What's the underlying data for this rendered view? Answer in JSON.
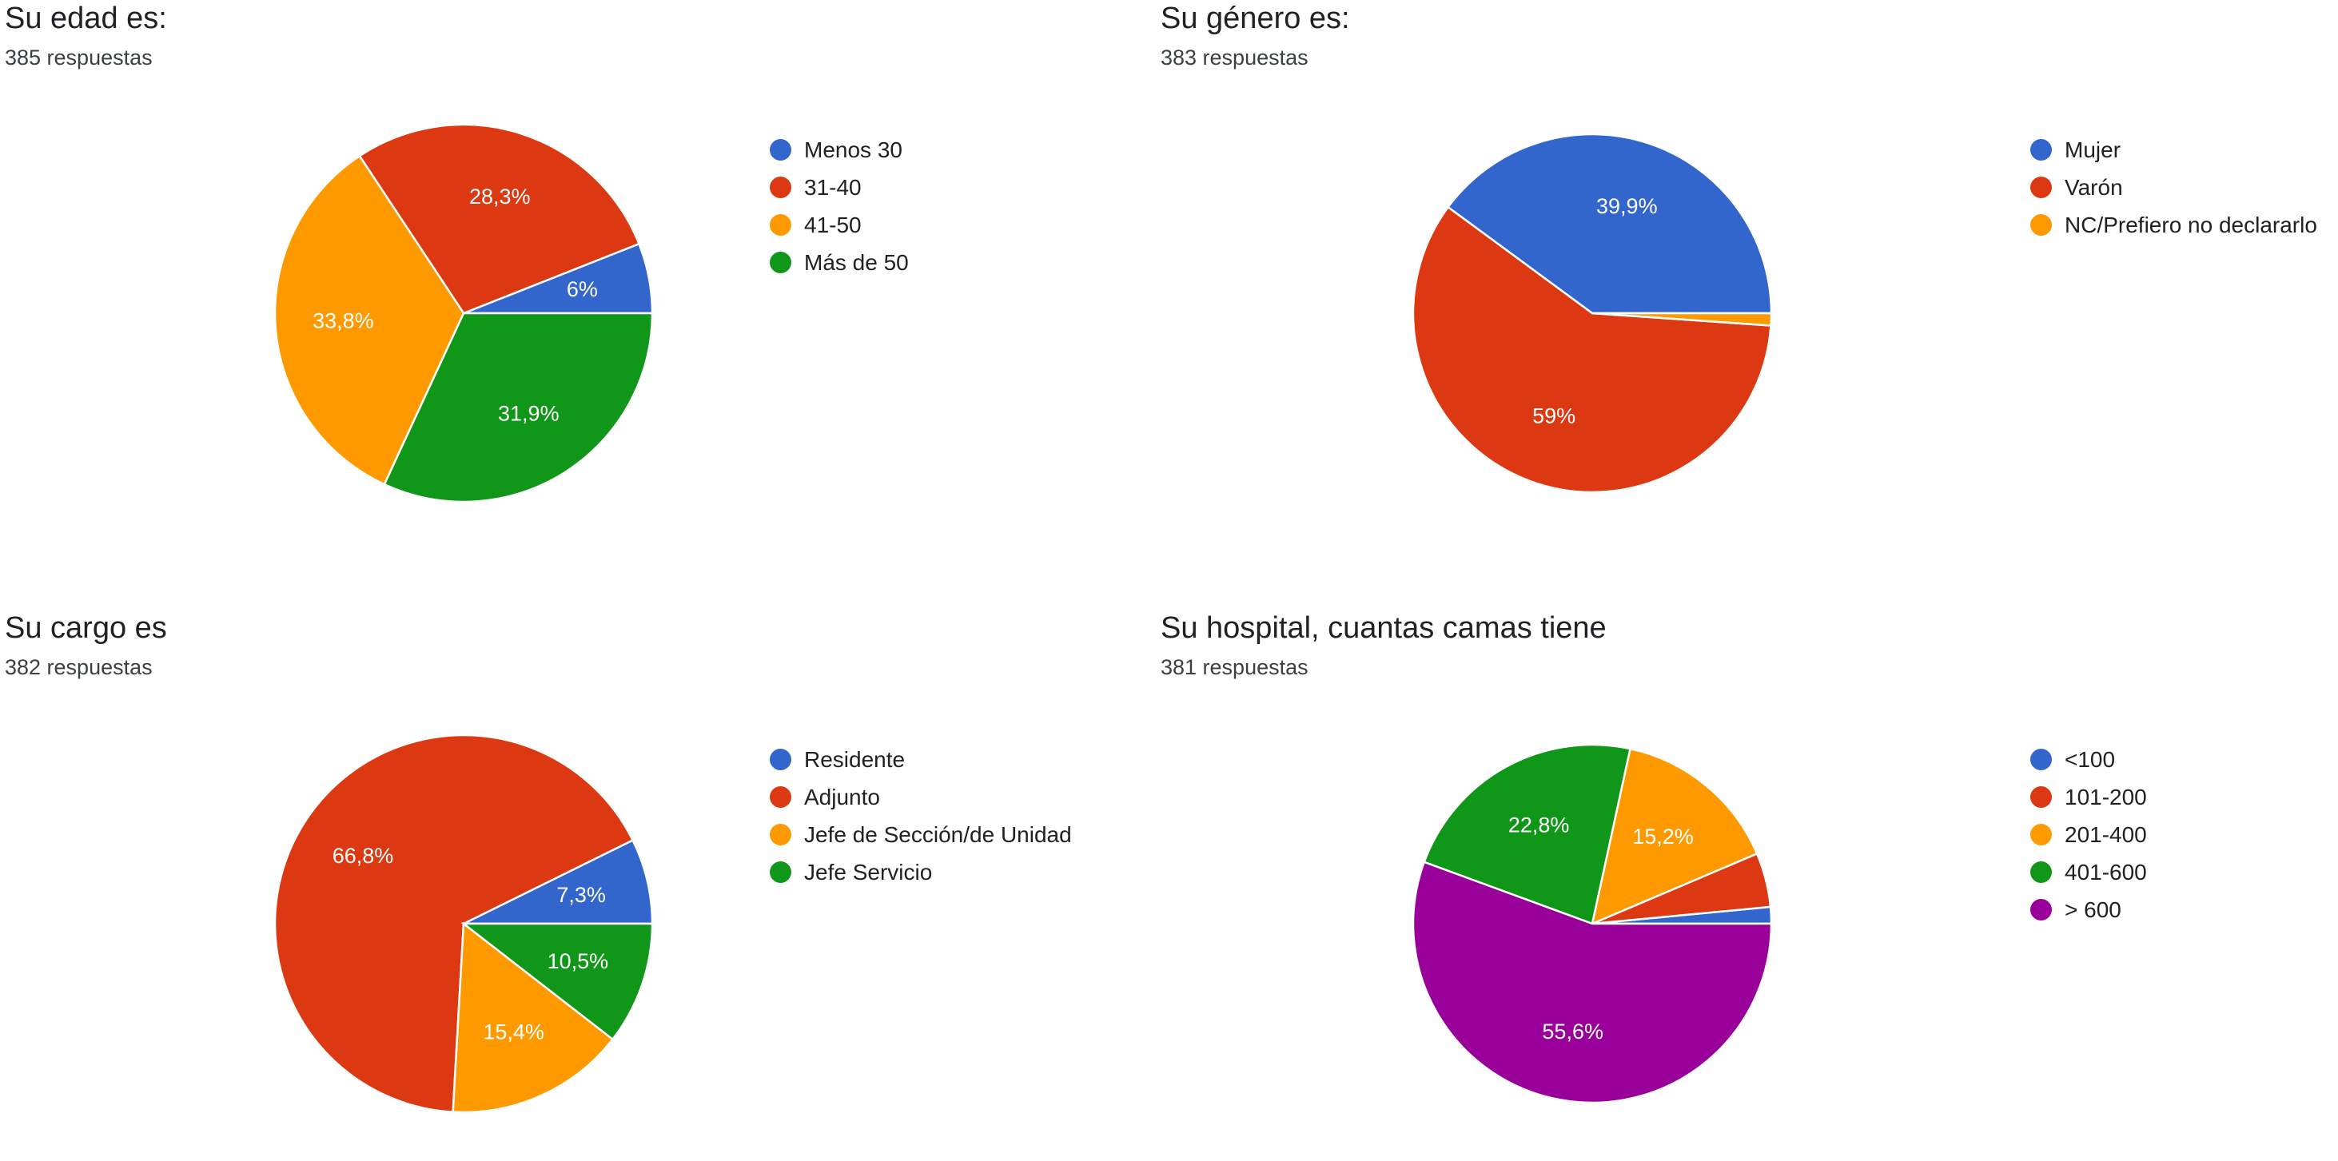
{
  "chart_data": [
    {
      "type": "pie",
      "title": "Su edad es:",
      "subtitle": "385 respuestas",
      "categories": [
        "Menos 30",
        "31-40",
        "41-50",
        "Más de 50"
      ],
      "values": [
        6,
        28.3,
        33.8,
        31.9
      ],
      "labels": [
        "6%",
        "28,3%",
        "33,8%",
        "31,9%"
      ],
      "colors": [
        "#3366cc",
        "#dc3912",
        "#ff9900",
        "#109618"
      ],
      "legend_position": "right"
    },
    {
      "type": "pie",
      "title": "Su género es:",
      "subtitle": "383 respuestas",
      "categories": [
        "Mujer",
        "Varón",
        "NC/Prefiero no declararlo"
      ],
      "values": [
        39.9,
        59,
        1.1
      ],
      "labels": [
        "39,9%",
        "59%",
        ""
      ],
      "colors": [
        "#3366cc",
        "#dc3912",
        "#ff9900"
      ],
      "legend_position": "right"
    },
    {
      "type": "pie",
      "title": "Su cargo es",
      "subtitle": "382 respuestas",
      "categories": [
        "Residente",
        "Adjunto",
        "Jefe de Sección/de Unidad",
        "Jefe Servicio"
      ],
      "values": [
        7.3,
        66.8,
        15.4,
        10.5
      ],
      "labels": [
        "7,3%",
        "66,8%",
        "15,4%",
        "10,5%"
      ],
      "colors": [
        "#3366cc",
        "#dc3912",
        "#ff9900",
        "#109618"
      ],
      "legend_position": "right"
    },
    {
      "type": "pie",
      "title": "Su hospital, cuantas camas tiene",
      "subtitle": "381 respuestas",
      "categories": [
        "<100",
        "101-200",
        "201-400",
        "401-600",
        "> 600"
      ],
      "values": [
        1.5,
        4.9,
        15.2,
        22.8,
        55.6
      ],
      "labels": [
        "",
        "",
        "15,2%",
        "22,8%",
        "55,6%"
      ],
      "colors": [
        "#3366cc",
        "#dc3912",
        "#ff9900",
        "#109618",
        "#990099"
      ],
      "legend_position": "right"
    }
  ]
}
